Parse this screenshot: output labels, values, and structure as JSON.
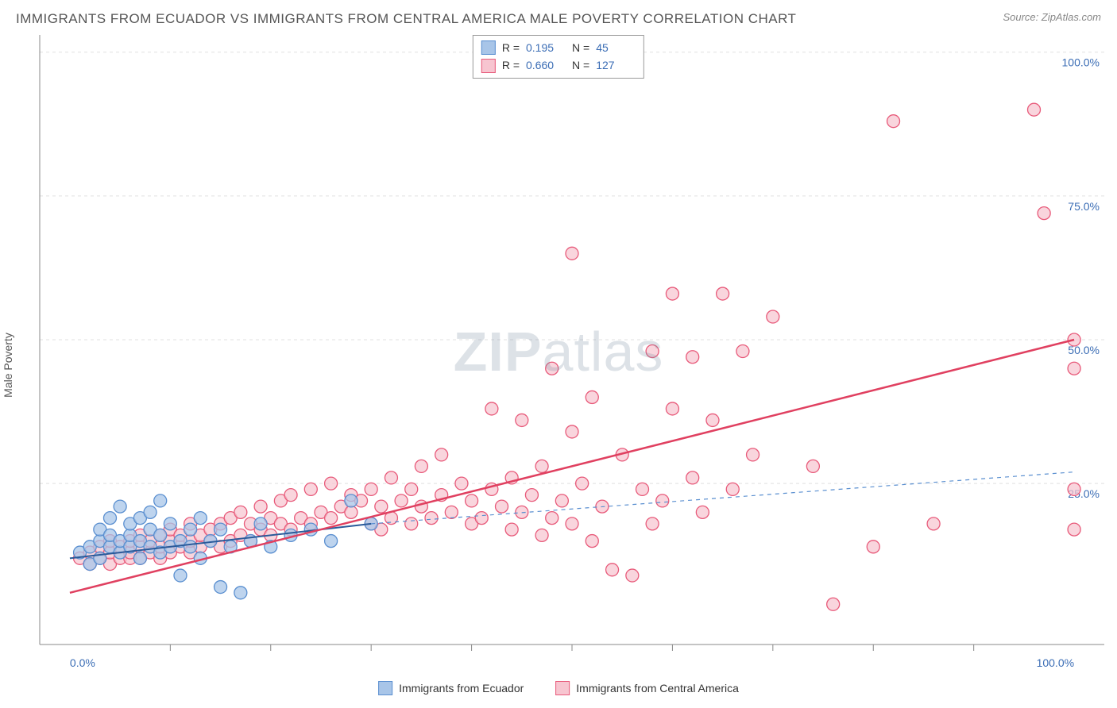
{
  "header": {
    "title": "IMMIGRANTS FROM ECUADOR VS IMMIGRANTS FROM CENTRAL AMERICA MALE POVERTY CORRELATION CHART",
    "source": "Source: ZipAtlas.com"
  },
  "watermark": {
    "prefix": "ZIP",
    "suffix": "atlas"
  },
  "y_axis": {
    "label": "Male Poverty"
  },
  "x_axis": {
    "tick_labels": [
      "0.0%",
      "100.0%"
    ],
    "tick_color": "#3b6db5",
    "tick_fontsize": 14
  },
  "y_ticks": {
    "labels": [
      "25.0%",
      "50.0%",
      "75.0%",
      "100.0%"
    ],
    "values": [
      25,
      50,
      75,
      100
    ],
    "color": "#3b6db5",
    "fontsize": 14
  },
  "grid": {
    "color": "#e0e0e0",
    "dash": "4,4"
  },
  "plot": {
    "x_range": [
      -3,
      103
    ],
    "y_range": [
      -3,
      103
    ],
    "axes_color": "#888888",
    "minor_tick_positions": [
      10,
      20,
      30,
      40,
      50,
      60,
      70,
      80,
      90
    ]
  },
  "series": [
    {
      "name": "Immigrants from Ecuador",
      "marker_fill": "#a8c5e8",
      "marker_stroke": "#5a8fd0",
      "marker_opacity": 0.75,
      "marker_radius": 8,
      "trend": {
        "x1": 0,
        "y1": 12,
        "x2": 30,
        "y2": 18,
        "stroke": "#2a5a9a",
        "width": 2,
        "dash": "none"
      },
      "trend_ext": {
        "x1": 30,
        "y1": 18,
        "x2": 100,
        "y2": 27,
        "stroke": "#5a8fd0",
        "width": 1.2,
        "dash": "5,5"
      },
      "points": [
        [
          1,
          13
        ],
        [
          2,
          14
        ],
        [
          2,
          11
        ],
        [
          3,
          15
        ],
        [
          3,
          12
        ],
        [
          3,
          17
        ],
        [
          4,
          14
        ],
        [
          4,
          16
        ],
        [
          4,
          19
        ],
        [
          5,
          13
        ],
        [
          5,
          15
        ],
        [
          5,
          21
        ],
        [
          6,
          14
        ],
        [
          6,
          16
        ],
        [
          6,
          18
        ],
        [
          7,
          12
        ],
        [
          7,
          15
        ],
        [
          7,
          19
        ],
        [
          8,
          14
        ],
        [
          8,
          17
        ],
        [
          8,
          20
        ],
        [
          9,
          13
        ],
        [
          9,
          16
        ],
        [
          9,
          22
        ],
        [
          10,
          14
        ],
        [
          10,
          18
        ],
        [
          11,
          9
        ],
        [
          11,
          15
        ],
        [
          12,
          14
        ],
        [
          12,
          17
        ],
        [
          13,
          12
        ],
        [
          13,
          19
        ],
        [
          14,
          15
        ],
        [
          15,
          7
        ],
        [
          15,
          17
        ],
        [
          16,
          14
        ],
        [
          17,
          6
        ],
        [
          18,
          15
        ],
        [
          19,
          18
        ],
        [
          20,
          14
        ],
        [
          22,
          16
        ],
        [
          24,
          17
        ],
        [
          26,
          15
        ],
        [
          28,
          22
        ],
        [
          30,
          18
        ]
      ]
    },
    {
      "name": "Immigrants from Central America",
      "marker_fill": "#f7c5d0",
      "marker_stroke": "#e85a7a",
      "marker_opacity": 0.72,
      "marker_radius": 8,
      "trend": {
        "x1": 0,
        "y1": 6,
        "x2": 100,
        "y2": 50,
        "stroke": "#e04060",
        "width": 2.5,
        "dash": "none"
      },
      "points": [
        [
          1,
          12
        ],
        [
          2,
          11
        ],
        [
          2,
          13
        ],
        [
          3,
          12
        ],
        [
          3,
          14
        ],
        [
          4,
          11
        ],
        [
          4,
          13
        ],
        [
          4,
          15
        ],
        [
          5,
          12
        ],
        [
          5,
          14
        ],
        [
          6,
          12
        ],
        [
          6,
          13
        ],
        [
          6,
          15
        ],
        [
          7,
          12
        ],
        [
          7,
          14
        ],
        [
          7,
          16
        ],
        [
          8,
          13
        ],
        [
          8,
          15
        ],
        [
          9,
          12
        ],
        [
          9,
          14
        ],
        [
          9,
          16
        ],
        [
          10,
          13
        ],
        [
          10,
          15
        ],
        [
          10,
          17
        ],
        [
          11,
          14
        ],
        [
          11,
          16
        ],
        [
          12,
          13
        ],
        [
          12,
          15
        ],
        [
          12,
          18
        ],
        [
          13,
          14
        ],
        [
          13,
          16
        ],
        [
          14,
          15
        ],
        [
          14,
          17
        ],
        [
          15,
          14
        ],
        [
          15,
          18
        ],
        [
          16,
          15
        ],
        [
          16,
          19
        ],
        [
          17,
          16
        ],
        [
          17,
          20
        ],
        [
          18,
          15
        ],
        [
          18,
          18
        ],
        [
          19,
          17
        ],
        [
          19,
          21
        ],
        [
          20,
          16
        ],
        [
          20,
          19
        ],
        [
          21,
          18
        ],
        [
          21,
          22
        ],
        [
          22,
          17
        ],
        [
          22,
          23
        ],
        [
          23,
          19
        ],
        [
          24,
          18
        ],
        [
          24,
          24
        ],
        [
          25,
          20
        ],
        [
          26,
          19
        ],
        [
          26,
          25
        ],
        [
          27,
          21
        ],
        [
          28,
          20
        ],
        [
          28,
          23
        ],
        [
          29,
          22
        ],
        [
          30,
          18
        ],
        [
          30,
          24
        ],
        [
          31,
          17
        ],
        [
          31,
          21
        ],
        [
          32,
          19
        ],
        [
          32,
          26
        ],
        [
          33,
          22
        ],
        [
          34,
          18
        ],
        [
          34,
          24
        ],
        [
          35,
          21
        ],
        [
          35,
          28
        ],
        [
          36,
          19
        ],
        [
          37,
          23
        ],
        [
          37,
          30
        ],
        [
          38,
          20
        ],
        [
          39,
          25
        ],
        [
          40,
          18
        ],
        [
          40,
          22
        ],
        [
          41,
          19
        ],
        [
          42,
          24
        ],
        [
          42,
          38
        ],
        [
          43,
          21
        ],
        [
          44,
          17
        ],
        [
          44,
          26
        ],
        [
          45,
          20
        ],
        [
          45,
          36
        ],
        [
          46,
          23
        ],
        [
          47,
          16
        ],
        [
          47,
          28
        ],
        [
          48,
          19
        ],
        [
          48,
          45
        ],
        [
          49,
          22
        ],
        [
          50,
          18
        ],
        [
          50,
          34
        ],
        [
          50,
          65
        ],
        [
          51,
          25
        ],
        [
          52,
          15
        ],
        [
          52,
          40
        ],
        [
          53,
          21
        ],
        [
          54,
          10
        ],
        [
          55,
          30
        ],
        [
          56,
          9
        ],
        [
          57,
          24
        ],
        [
          58,
          18
        ],
        [
          58,
          48
        ],
        [
          59,
          22
        ],
        [
          60,
          38
        ],
        [
          60,
          58
        ],
        [
          62,
          26
        ],
        [
          62,
          47
        ],
        [
          63,
          20
        ],
        [
          64,
          36
        ],
        [
          65,
          58
        ],
        [
          66,
          24
        ],
        [
          67,
          48
        ],
        [
          68,
          30
        ],
        [
          70,
          54
        ],
        [
          74,
          28
        ],
        [
          76,
          4
        ],
        [
          80,
          14
        ],
        [
          82,
          88
        ],
        [
          86,
          18
        ],
        [
          96,
          90
        ],
        [
          97,
          72
        ],
        [
          100,
          45
        ],
        [
          100,
          50
        ],
        [
          100,
          17
        ],
        [
          100,
          24
        ]
      ]
    }
  ],
  "top_legend": {
    "rows": [
      {
        "swatch_fill": "#a8c5e8",
        "swatch_stroke": "#5a8fd0",
        "r_label": "R =",
        "r_value": "0.195",
        "n_label": "N =",
        "n_value": "45"
      },
      {
        "swatch_fill": "#f7c5d0",
        "swatch_stroke": "#e85a7a",
        "r_label": "R =",
        "r_value": "0.660",
        "n_label": "N =",
        "n_value": "127"
      }
    ]
  },
  "bottom_legend": {
    "items": [
      {
        "fill": "#a8c5e8",
        "stroke": "#5a8fd0",
        "label": "Immigrants from Ecuador"
      },
      {
        "fill": "#f7c5d0",
        "stroke": "#e85a7a",
        "label": "Immigrants from Central America"
      }
    ]
  }
}
